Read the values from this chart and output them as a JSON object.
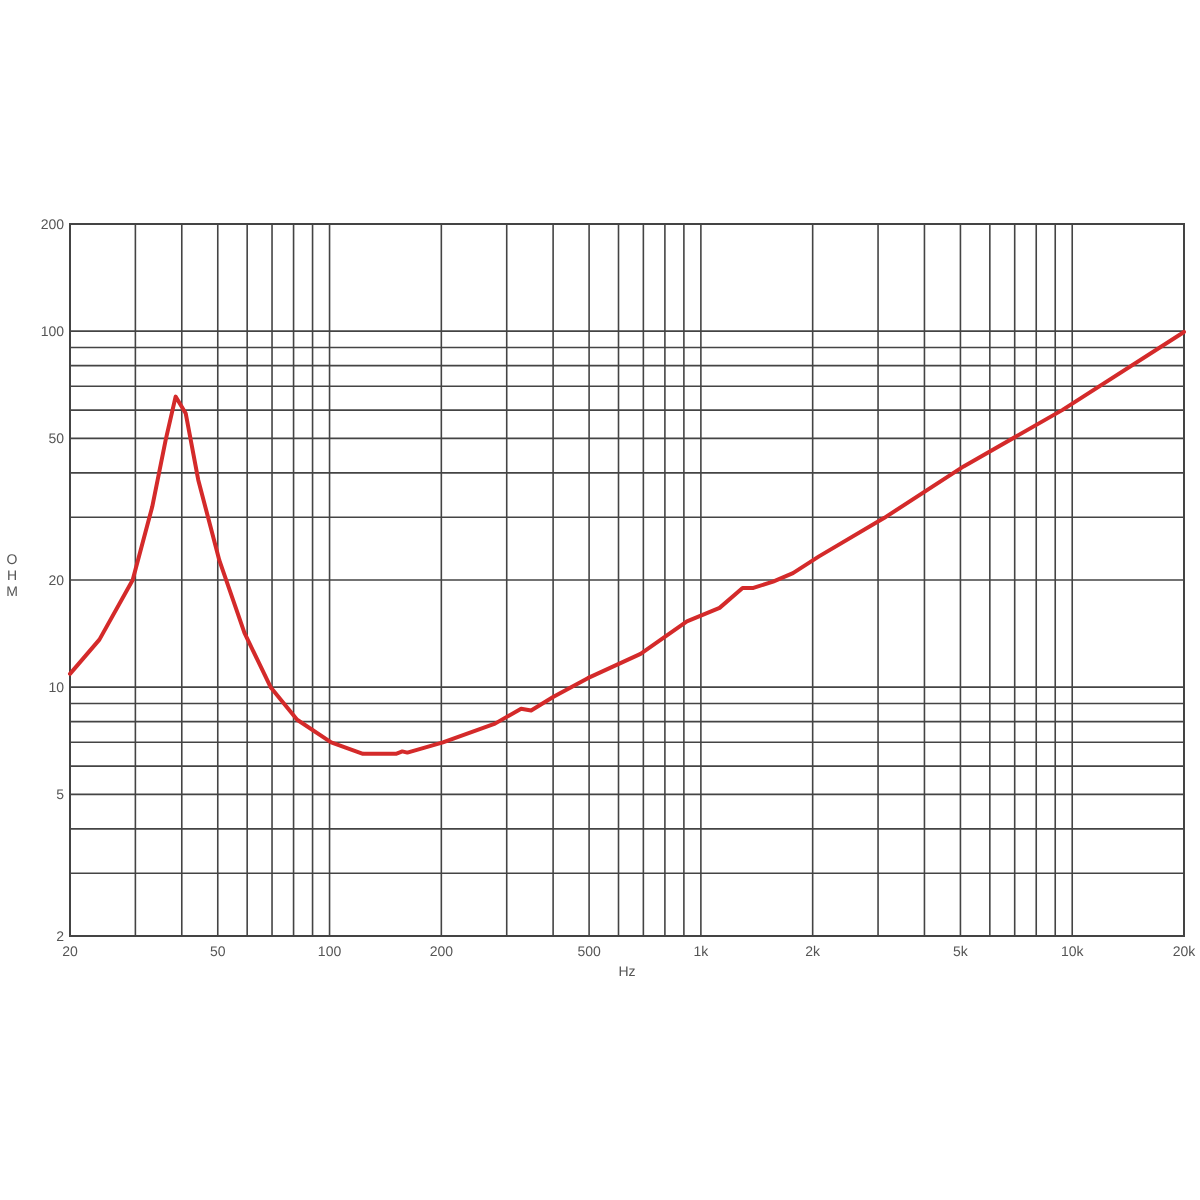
{
  "chart_data": {
    "type": "line",
    "xlabel": "Hz",
    "ylabel": "OHM",
    "log": "xy",
    "grid": true,
    "marker": "none",
    "line_style": "solid",
    "xlim": [
      20,
      20000
    ],
    "ylim": [
      2,
      200
    ],
    "xticks": [
      20,
      {
        "value": 30,
        "label": null
      },
      {
        "value": 40,
        "label": null
      },
      50,
      {
        "value": 60,
        "label": null
      },
      {
        "value": 70,
        "label": null
      },
      {
        "value": 80,
        "label": null
      },
      {
        "value": 90,
        "label": null
      },
      100,
      200,
      {
        "value": 300,
        "label": null
      },
      {
        "value": 400,
        "label": null
      },
      500,
      {
        "value": 600,
        "label": null
      },
      {
        "value": 700,
        "label": null
      },
      {
        "value": 800,
        "label": null
      },
      {
        "value": 900,
        "label": null
      },
      {
        "value": 1000,
        "label": "1k"
      },
      {
        "value": 2000,
        "label": "2k"
      },
      {
        "value": 3000,
        "label": null
      },
      {
        "value": 4000,
        "label": null
      },
      {
        "value": 5000,
        "label": "5k"
      },
      {
        "value": 6000,
        "label": null
      },
      {
        "value": 7000,
        "label": null
      },
      {
        "value": 8000,
        "label": null
      },
      {
        "value": 9000,
        "label": null
      },
      {
        "value": 10000,
        "label": "10k"
      },
      {
        "value": 20000,
        "label": "20k"
      }
    ],
    "yticks": [
      2,
      {
        "value": 3,
        "label": null
      },
      {
        "value": 4,
        "label": null
      },
      5,
      {
        "value": 6,
        "label": null
      },
      {
        "value": 7,
        "label": null
      },
      {
        "value": 8,
        "label": null
      },
      {
        "value": 9,
        "label": null
      },
      10,
      20,
      {
        "value": 30,
        "label": null
      },
      {
        "value": 40,
        "label": null
      },
      50,
      {
        "value": 60,
        "label": null
      },
      {
        "value": 70,
        "label": null
      },
      {
        "value": 80,
        "label": null
      },
      {
        "value": 90,
        "label": null
      },
      100,
      200
    ],
    "series": [
      {
        "color": "#d42a2a",
        "x": [
          20,
          24,
          29.5,
          33.3,
          36.2,
          38.5,
          41,
          44.3,
          50.5,
          59,
          69.4,
          81.8,
          101,
          123,
          151,
          157,
          162,
          202,
          279,
          328,
          349,
          401,
          496,
          688,
          917,
          1123,
          1295,
          1385,
          1565,
          1770,
          2080,
          3120,
          5100,
          9420,
          20000
        ],
        "values": [
          10.9,
          13.6,
          20,
          32.1,
          49.5,
          65.5,
          58.7,
          38.2,
          22.7,
          14.2,
          10,
          8.1,
          7,
          6.5,
          6.5,
          6.6,
          6.55,
          7,
          7.9,
          8.7,
          8.6,
          9.4,
          10.6,
          12.4,
          15.3,
          16.7,
          19,
          19,
          19.8,
          20.9,
          23.3,
          29.9,
          41.7,
          60.1,
          99.5
        ]
      }
    ]
  }
}
